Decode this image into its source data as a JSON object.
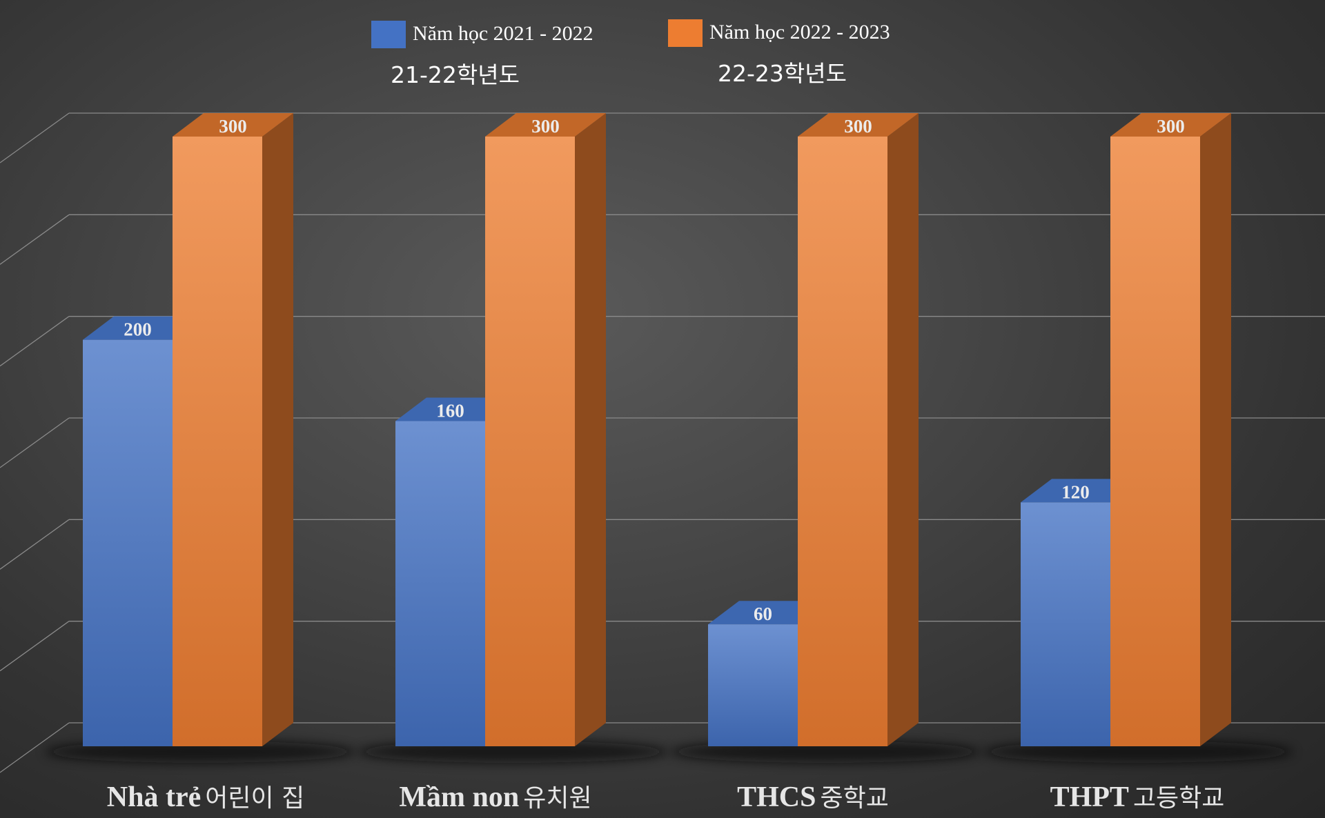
{
  "chart_data": {
    "type": "bar",
    "categories": [
      {
        "name": "Nhà trẻ",
        "sub": "어린이 집"
      },
      {
        "name": "Mầm non",
        "sub": "유치원"
      },
      {
        "name": "THCS",
        "sub": "중학교"
      },
      {
        "name": "THPT",
        "sub": "고등학교"
      }
    ],
    "series": [
      {
        "name": "Năm học 2021 - 2022",
        "sub": "21-22학년도",
        "color": "#4472c4",
        "values": [
          200,
          160,
          60,
          120
        ]
      },
      {
        "name": "Năm học 2022 - 2023",
        "sub": "22-23학년도",
        "color": "#ed7d31",
        "values": [
          300,
          300,
          300,
          300
        ]
      }
    ],
    "ylim": [
      0,
      300
    ],
    "grid": true,
    "legend_position": "top",
    "data_labels": true,
    "style": "3d-clustered-column"
  }
}
